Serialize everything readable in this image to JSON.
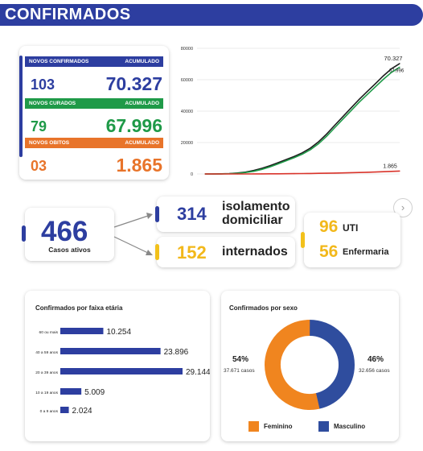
{
  "header": {
    "title": "CONFIRMADOS"
  },
  "stats": [
    {
      "label_left": "NOVOS CONFIRMADOS",
      "label_right": "ACUMULADO",
      "new": "103",
      "acc": "70.327",
      "header_color": "#2d3ea0",
      "value_color": "#2d3ea0"
    },
    {
      "label_left": "NOVOS CURADOS",
      "label_right": "ACUMULADO",
      "new": "79",
      "acc": "67.996",
      "header_color": "#1f9a48",
      "value_color": "#1f9a48"
    },
    {
      "label_left": "NOVOS OBITOS",
      "label_right": "ACUMULADO",
      "new": "03",
      "acc": "1.865",
      "header_color": "#e8742a",
      "value_color": "#e8742a"
    }
  ],
  "colors": {
    "brand_blue": "#2d3ea0",
    "green": "#1f9a48",
    "orange": "#e8742a",
    "yellow": "#f2c11b",
    "red": "#d9342b",
    "dark_line": "#1d1d1d"
  },
  "active": {
    "total": "466",
    "total_label": "Casos ativos",
    "isolation_value": "314",
    "isolation_label_1": "isolamento",
    "isolation_label_2": "domiciliar",
    "hospital_value": "152",
    "hospital_label": "internados",
    "uti_value": "96",
    "uti_label": "UTI",
    "ward_value": "56",
    "ward_label": "Enfermaria"
  },
  "chart_data": [
    {
      "type": "line",
      "title": "",
      "yticks": [
        "80000",
        "60000",
        "40000",
        "20000",
        "0"
      ],
      "ylim": [
        0,
        80000
      ],
      "grid": true,
      "end_labels": [
        "70.327",
        "67.996",
        "1.865"
      ],
      "series": [
        {
          "color": "#1d1d1d",
          "values": [
            0,
            20,
            80,
            250,
            600,
            1200,
            2200,
            3600,
            5300,
            7200,
            9200,
            11200,
            13500,
            16500,
            20500,
            25500,
            31000,
            36500,
            42000,
            47500,
            52500,
            57500,
            62500,
            67000,
            70327
          ]
        },
        {
          "color": "#1f9a48",
          "values": [
            0,
            10,
            50,
            150,
            400,
            900,
            1700,
            2900,
            4500,
            6400,
            8400,
            10400,
            12600,
            15500,
            19300,
            24100,
            29500,
            34900,
            40300,
            45700,
            50600,
            55500,
            60300,
            64700,
            67996
          ]
        },
        {
          "color": "#d9342b",
          "values": [
            0,
            1,
            3,
            8,
            15,
            25,
            40,
            60,
            90,
            120,
            160,
            200,
            250,
            320,
            400,
            480,
            570,
            680,
            800,
            930,
            1080,
            1250,
            1450,
            1650,
            1865
          ]
        }
      ]
    },
    {
      "type": "bar",
      "title": "Confirmados por faixa etária",
      "categories": [
        "60 ou mais",
        "40 a 59 anos",
        "20 a 39 anos",
        "10 a 19 anos",
        "0 a 9 anos"
      ],
      "values": [
        10254,
        23896,
        29144,
        5009,
        2024
      ],
      "value_labels": [
        "10.254",
        "23.896",
        "29.144",
        "5.009",
        "2.024"
      ],
      "color": "#2d3ea0"
    },
    {
      "type": "pie",
      "title": "Confirmados por sexo",
      "slices": [
        {
          "label": "Feminino",
          "value": 37671,
          "percent": "54%",
          "cases": "37.671 casos",
          "color": "#f0851f"
        },
        {
          "label": "Masculino",
          "value": 32656,
          "percent": "46%",
          "cases": "32.656 casos",
          "color": "#2f4d9e"
        }
      ]
    }
  ]
}
